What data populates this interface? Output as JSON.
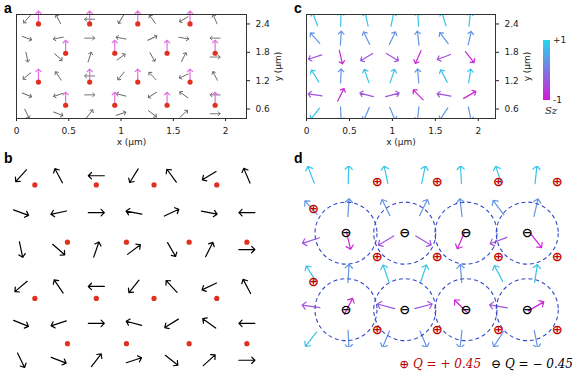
{
  "chart_data": [
    {
      "type": "surface",
      "title": "a",
      "x_label": "x (μm)",
      "y_label": "y (μm)",
      "xlim": [
        0,
        2.2
      ],
      "ylim": [
        0.4,
        2.6
      ],
      "xticks": [
        0,
        0.5,
        1,
        1.5,
        2
      ],
      "yticks": [
        0.6,
        1.2,
        1.8,
        2.4
      ],
      "points": {
        "color": "#e0301e",
        "x": [
          0.21,
          0.7,
          1.16,
          1.66,
          0.47,
          0.94,
          1.44,
          1.9,
          0.21,
          0.7,
          1.16,
          1.66,
          0.47,
          0.94,
          1.44,
          1.9
        ],
        "y": [
          2.4,
          2.4,
          2.4,
          2.4,
          1.78,
          1.78,
          1.78,
          1.78,
          1.17,
          1.17,
          1.17,
          1.17,
          0.68,
          0.68,
          0.68,
          0.68
        ]
      },
      "field": {
        "color": "#666666",
        "x": [
          0.1,
          0.4,
          0.7,
          1.0,
          1.3,
          1.6,
          1.9
        ],
        "y": [
          2.5,
          2.1,
          1.7,
          1.3,
          0.9,
          0.5
        ],
        "angle": [
          [
            228,
            118,
            180,
            238,
            126,
            211,
            113
          ],
          [
            340,
            192,
            0,
            169,
            25,
            349,
            180
          ],
          [
            282,
            319,
            71,
            37,
            300,
            63,
            0
          ],
          [
            220,
            124,
            180,
            231,
            133,
            205,
            118
          ],
          [
            338,
            198,
            0,
            165,
            212,
            144,
            180
          ],
          [
            296,
            339,
            52,
            18,
            322,
            42,
            0
          ]
        ]
      }
    },
    {
      "type": "vector_field",
      "title": "b",
      "xlim": [
        0,
        2.2
      ],
      "ylim": [
        0.4,
        2.6
      ],
      "tick_labels": false,
      "points": {
        "color": "#e0301e",
        "x": [
          0.21,
          0.7,
          1.16,
          1.66,
          0.47,
          0.94,
          1.44,
          1.9,
          0.21,
          0.7,
          1.16,
          1.66,
          0.47,
          0.94,
          1.44,
          1.9
        ],
        "y": [
          2.4,
          2.4,
          2.4,
          2.4,
          1.78,
          1.78,
          1.78,
          1.78,
          1.17,
          1.17,
          1.17,
          1.17,
          0.68,
          0.68,
          0.68,
          0.68
        ]
      },
      "field": {
        "color": "#000000",
        "x": [
          0.1,
          0.4,
          0.7,
          1.0,
          1.3,
          1.6,
          1.9
        ],
        "y": [
          2.5,
          2.1,
          1.7,
          1.3,
          0.9,
          0.5
        ],
        "angle": [
          [
            228,
            118,
            180,
            238,
            126,
            211,
            113
          ],
          [
            340,
            192,
            0,
            169,
            25,
            349,
            180
          ],
          [
            282,
            319,
            71,
            37,
            300,
            63,
            0
          ],
          [
            220,
            124,
            180,
            231,
            133,
            205,
            118
          ],
          [
            338,
            198,
            0,
            165,
            212,
            144,
            180
          ],
          [
            296,
            339,
            52,
            18,
            322,
            42,
            0
          ]
        ]
      }
    },
    {
      "type": "vector_field",
      "title": "c",
      "x_label": "x (μm)",
      "y_label": "y (μm)",
      "xlim": [
        0,
        2.2
      ],
      "ylim": [
        0.4,
        2.6
      ],
      "xticks": [
        0,
        0.5,
        1,
        1.5,
        2
      ],
      "yticks": [
        0.6,
        1.2,
        1.8,
        2.4
      ],
      "field": {
        "x": [
          0.1,
          0.4,
          0.7,
          1.0,
          1.3,
          1.6,
          1.9
        ],
        "y": [
          2.5,
          2.1,
          1.7,
          1.3,
          0.9,
          0.5
        ],
        "angle": [
          [
            111,
            88,
            102,
            78,
            93,
            108,
            84
          ],
          [
            132,
            86,
            116,
            64,
            97,
            127,
            77
          ],
          [
            198,
            283,
            211,
            329,
            246,
            201,
            308
          ],
          [
            122,
            87,
            109,
            71,
            95,
            118,
            81
          ],
          [
            172,
            63,
            165,
            15,
            135,
            170,
            30
          ],
          [
            232,
            273,
            247,
            293,
            264,
            237,
            281
          ]
        ],
        "sz": [
          [
            0.8,
            0.8,
            0.8,
            0.8,
            0.8,
            0.8,
            0.8
          ],
          [
            0.3,
            0.3,
            0.3,
            0.3,
            0.3,
            0.3,
            0.3
          ],
          [
            -0.4,
            -0.9,
            -0.4,
            -0.4,
            -0.9,
            -0.4,
            -0.9
          ],
          [
            0.8,
            0.3,
            0.8,
            0.8,
            0.3,
            0.8,
            0.8
          ],
          [
            -0.4,
            -0.9,
            -0.4,
            -0.4,
            -0.9,
            -0.4,
            -0.9
          ],
          [
            0.8,
            0.3,
            0.3,
            0.3,
            0.3,
            0.3,
            0.3
          ]
        ]
      },
      "colorbar": {
        "label": "Sz",
        "range": [
          -1,
          1
        ],
        "ticks": [
          {
            "value": 1,
            "label": "+1"
          },
          -1
        ]
      }
    },
    {
      "type": "vector_field",
      "title": "d",
      "xlim": [
        0,
        2.2
      ],
      "ylim": [
        0.4,
        2.6
      ],
      "tick_labels": false,
      "field": {
        "x": [
          0.1,
          0.4,
          0.7,
          1.0,
          1.3,
          1.6,
          1.9
        ],
        "y": [
          2.5,
          2.1,
          1.7,
          1.3,
          0.9,
          0.5
        ],
        "angle": [
          [
            111,
            88,
            102,
            78,
            93,
            108,
            84
          ],
          [
            132,
            86,
            116,
            64,
            97,
            127,
            77
          ],
          [
            198,
            283,
            211,
            329,
            246,
            201,
            308
          ],
          [
            122,
            87,
            109,
            71,
            95,
            118,
            81
          ],
          [
            172,
            63,
            165,
            15,
            135,
            170,
            30
          ],
          [
            232,
            273,
            247,
            293,
            264,
            237,
            281
          ]
        ],
        "sz": [
          [
            0.8,
            0.8,
            0.8,
            0.8,
            0.8,
            0.8,
            0.8
          ],
          [
            0.3,
            0.3,
            0.3,
            0.3,
            0.3,
            0.3,
            0.3
          ],
          [
            -0.4,
            -0.9,
            -0.4,
            -0.4,
            -0.9,
            -0.4,
            -0.9
          ],
          [
            0.8,
            0.3,
            0.8,
            0.8,
            0.3,
            0.8,
            0.8
          ],
          [
            -0.4,
            -0.9,
            -0.4,
            -0.4,
            -0.9,
            -0.4,
            -0.9
          ],
          [
            0.8,
            0.3,
            0.3,
            0.3,
            0.3,
            0.3,
            0.3
          ]
        ]
      },
      "markers": [
        {
          "symbol": "⊕",
          "label": "Q = + 0.45",
          "q": 0.45,
          "color": "#c00000",
          "x": [
            0.12,
            0.63,
            1.11,
            1.6,
            2.07,
            0.12,
            0.63,
            1.11,
            1.6,
            2.07,
            0.63,
            1.11,
            1.6,
            2.07
          ],
          "y": [
            2.09,
            2.41,
            2.41,
            2.41,
            2.41,
            1.2,
            1.5,
            1.5,
            1.5,
            1.5,
            0.61,
            0.61,
            0.61,
            0.61
          ]
        },
        {
          "symbol": "⊖",
          "label": "Q = − 0.45",
          "q": -0.45,
          "color": "#000000",
          "x": [
            0.38,
            0.85,
            1.34,
            1.83,
            0.38,
            0.85,
            1.34,
            1.83
          ],
          "y": [
            1.79,
            1.79,
            1.79,
            1.79,
            0.86,
            0.86,
            0.86,
            0.86
          ]
        }
      ]
    }
  ]
}
